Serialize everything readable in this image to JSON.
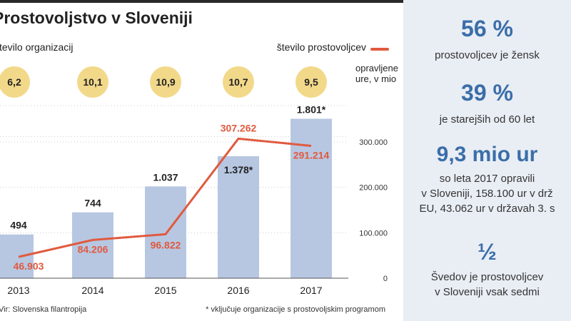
{
  "title": "Prostovoljstvo v Sloveniji",
  "legend": {
    "bars_label": "število organizacij",
    "line_label": "število prostovoljcev",
    "line_color": "#e05a3f",
    "bar_color": "#b7c7e1"
  },
  "hours_unit": [
    "opravljene",
    "ure, v mio"
  ],
  "hours": [
    "6,2",
    "10,1",
    "10,9",
    "10,7",
    "9,5"
  ],
  "chart_data": {
    "type": "bar",
    "title": "Prostovoljstvo v Sloveniji",
    "categories": [
      "2013",
      "2014",
      "2015",
      "2016",
      "2017"
    ],
    "series": [
      {
        "name": "število organizacij",
        "type": "bar",
        "values": [
          494,
          744,
          1037,
          1378,
          1801
        ],
        "labels": [
          "494",
          "744",
          "1.037",
          "1.378*",
          "1.801*"
        ]
      },
      {
        "name": "število prostovoljcev",
        "type": "line",
        "axis": "right",
        "values": [
          46903,
          84206,
          96822,
          307262,
          291214
        ],
        "labels": [
          "46.903",
          "84.206",
          "96.822",
          "307.262",
          "291.214"
        ]
      }
    ],
    "right_axis": {
      "range": [
        0,
        380000
      ],
      "ticks": [
        0,
        100000,
        200000,
        300000
      ],
      "tick_labels": [
        "0",
        "100.000",
        "200.000",
        "300.000"
      ]
    },
    "bar_max": 1950
  },
  "footer": {
    "source": "Vir: Slovenska filantropija",
    "note": "* vključuje organizacije s prostovoljskim programom"
  },
  "side_stats": [
    {
      "value": "56 %",
      "lines": [
        "prostovoljcev je žensk"
      ]
    },
    {
      "value": "39 %",
      "lines": [
        "je starejših od 60 let"
      ]
    },
    {
      "value": "9,3 mio ur",
      "lines": [
        "so leta 2017 opravili",
        "v Sloveniji, 158.100 ur v drž",
        "EU, 43.062 ur v državah 3. s"
      ]
    },
    {
      "value": "½",
      "lines": [
        "Švedov je prostovoljcev",
        "v Sloveniji vsak sedmi"
      ]
    }
  ]
}
